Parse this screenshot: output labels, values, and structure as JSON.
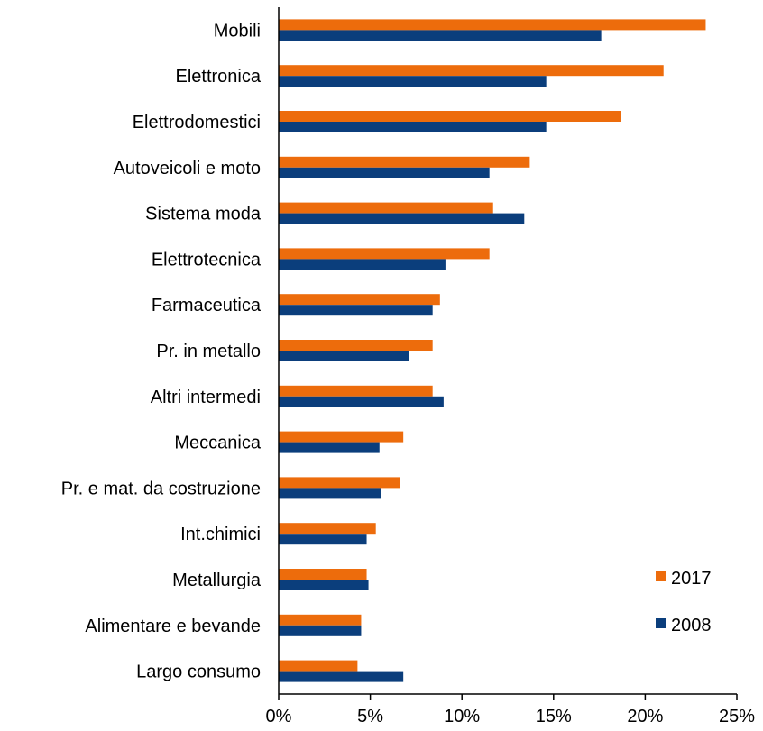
{
  "chart_data": {
    "type": "bar",
    "orientation": "horizontal",
    "categories": [
      "Mobili",
      "Elettronica",
      "Elettrodomestici",
      "Autoveicoli e moto",
      "Sistema moda",
      "Elettrotecnica",
      "Farmaceutica",
      "Pr. in metallo",
      "Altri intermedi",
      "Meccanica",
      "Pr. e mat. da costruzione",
      "Int.chimici",
      "Metallurgia",
      "Alimentare e bevande",
      "Largo consumo"
    ],
    "series": [
      {
        "name": "2017",
        "color": "#ED6C0C",
        "values": [
          23.3,
          21.0,
          18.7,
          13.7,
          11.7,
          11.5,
          8.8,
          8.4,
          8.4,
          6.8,
          6.6,
          5.3,
          4.8,
          4.5,
          4.3
        ]
      },
      {
        "name": "2008",
        "color": "#0B3E7C",
        "values": [
          17.6,
          14.6,
          14.6,
          11.5,
          13.4,
          9.1,
          8.4,
          7.1,
          9.0,
          5.5,
          5.6,
          4.8,
          4.9,
          4.5,
          6.8
        ]
      }
    ],
    "x_ticks": [
      "0%",
      "5%",
      "10%",
      "15%",
      "20%",
      "25%"
    ],
    "xlim": [
      0,
      25
    ],
    "grid": false,
    "legend_position": "bottom-right"
  }
}
